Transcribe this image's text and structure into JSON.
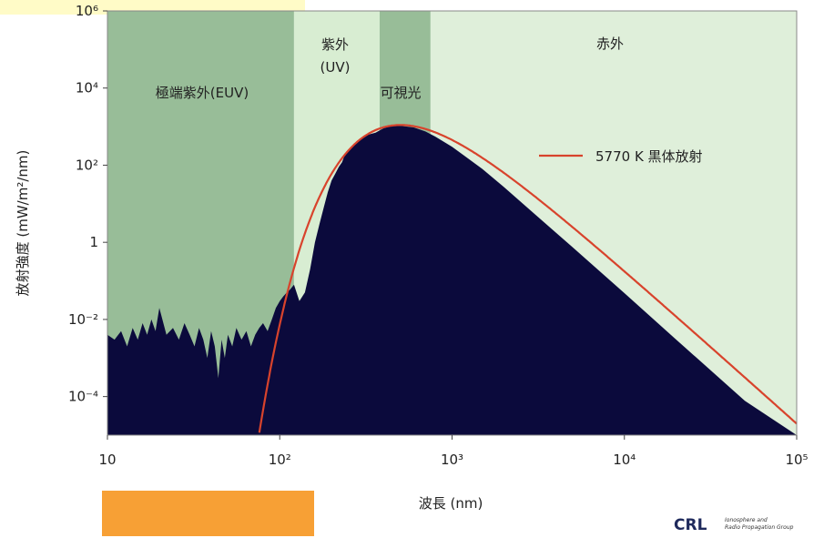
{
  "chart_data": {
    "type": "area",
    "x_scale": "log",
    "y_scale": "log",
    "xlim": [
      10,
      100000
    ],
    "ylim": [
      1e-05,
      1000000
    ],
    "xlabel": "波長 (nm)",
    "ylabel": "放射強度 (mW/m²/nm)",
    "x_ticks": [
      "10",
      "10²",
      "10³",
      "10⁴",
      "10⁵"
    ],
    "y_ticks": [
      "10⁻⁴",
      "10⁻²",
      "1",
      "10²",
      "10⁴",
      "10⁶"
    ],
    "bands": [
      {
        "label": "極端紫外(EUV)",
        "range": [
          10,
          121
        ],
        "color": "#98bd98"
      },
      {
        "label": "紫外\n(UV)",
        "range": [
          121,
          380
        ],
        "color": "#d8edd2"
      },
      {
        "label": "可視光",
        "range": [
          380,
          750
        ],
        "color": "#98bd98"
      },
      {
        "label": "赤外",
        "range": [
          750,
          100000
        ],
        "color": "#dfefda"
      }
    ],
    "series": [
      {
        "name": "5770 K 黒体放射",
        "type": "line",
        "color": "#d8432c",
        "temperature_K": 5770
      },
      {
        "type": "area",
        "color": "#0b0a3c",
        "x": [
          10,
          11,
          12,
          13,
          14,
          15,
          16,
          17,
          18,
          19,
          20,
          22,
          24,
          26,
          28,
          30,
          32,
          34,
          36,
          38,
          40,
          42,
          44,
          46,
          48,
          50,
          53,
          56,
          60,
          64,
          68,
          72,
          76,
          80,
          85,
          90,
          95,
          100,
          105,
          110,
          115,
          121,
          130,
          140,
          150,
          160,
          170,
          180,
          190,
          200,
          210,
          220,
          230,
          240,
          250,
          260,
          270,
          280,
          290,
          300,
          320,
          340,
          360,
          380,
          400,
          430,
          460,
          500,
          550,
          600,
          700,
          800,
          1000,
          1500,
          2000,
          3000,
          5000,
          10000,
          20000,
          50000,
          100000
        ],
        "y": [
          0.004,
          0.003,
          0.005,
          0.002,
          0.006,
          0.003,
          0.008,
          0.004,
          0.01,
          0.005,
          0.02,
          0.004,
          0.006,
          0.003,
          0.008,
          0.004,
          0.002,
          0.006,
          0.003,
          0.001,
          0.005,
          0.002,
          0.0003,
          0.003,
          0.001,
          0.004,
          0.002,
          0.006,
          0.003,
          0.005,
          0.002,
          0.004,
          0.006,
          0.008,
          0.005,
          0.01,
          0.02,
          0.03,
          0.04,
          0.05,
          0.06,
          0.08,
          0.03,
          0.05,
          0.2,
          1,
          3,
          8,
          20,
          40,
          60,
          90,
          120,
          200,
          250,
          300,
          350,
          400,
          450,
          500,
          600,
          650,
          700,
          800,
          900,
          1000,
          1050,
          1050,
          1000,
          950,
          750,
          550,
          300,
          80,
          27,
          5.5,
          0.75,
          0.048,
          0.003,
          7.8e-05,
          4.9e-06
        ]
      }
    ],
    "legend": {
      "position": "right",
      "entries": [
        "5770 K 黒体放射"
      ]
    }
  },
  "logo": {
    "text": "CRL",
    "caption_1": "Ionosphere and",
    "caption_2": "Radio Propagation Group"
  }
}
